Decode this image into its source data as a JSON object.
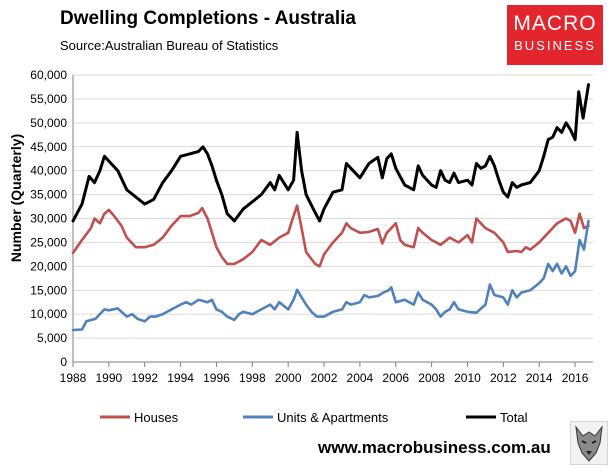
{
  "chart_data": {
    "type": "line",
    "title": "Dwelling Completions - Australia",
    "subtitle": "Source:Australian Bureau of Statistics",
    "xlabel": "",
    "ylabel": "Number (Quarterly)",
    "xlim": [
      1988,
      2017
    ],
    "ylim": [
      0,
      60000
    ],
    "grid": true,
    "legend_position": "bottom",
    "x_ticks": [
      "1988",
      "1990",
      "1992",
      "1994",
      "1996",
      "1998",
      "2000",
      "2002",
      "2004",
      "2006",
      "2008",
      "2010",
      "2012",
      "2014",
      "2016"
    ],
    "y_ticks": [
      "0",
      "5,000",
      "10,000",
      "15,000",
      "20,000",
      "25,000",
      "30,000",
      "35,000",
      "40,000",
      "45,000",
      "50,000",
      "55,000",
      "60,000"
    ],
    "series": [
      {
        "name": "Houses",
        "color": "#c0504d",
        "points": [
          [
            1988,
            22800
          ],
          [
            1988.5,
            25500
          ],
          [
            1989,
            28000
          ],
          [
            1989.2,
            30000
          ],
          [
            1989.5,
            29000
          ],
          [
            1989.75,
            31000
          ],
          [
            1990,
            31800
          ],
          [
            1990.3,
            30500
          ],
          [
            1990.7,
            28500
          ],
          [
            1991,
            26000
          ],
          [
            1991.5,
            24000
          ],
          [
            1992,
            24000
          ],
          [
            1992.5,
            24500
          ],
          [
            1993,
            26000
          ],
          [
            1993.5,
            28500
          ],
          [
            1994,
            30500
          ],
          [
            1994.5,
            30500
          ],
          [
            1995,
            31200
          ],
          [
            1995.2,
            32200
          ],
          [
            1995.5,
            30000
          ],
          [
            1995.75,
            27000
          ],
          [
            1996,
            24000
          ],
          [
            1996.3,
            22000
          ],
          [
            1996.6,
            20500
          ],
          [
            1997,
            20500
          ],
          [
            1997.5,
            21500
          ],
          [
            1998,
            23000
          ],
          [
            1998.5,
            25500
          ],
          [
            1999,
            24500
          ],
          [
            1999.5,
            26000
          ],
          [
            2000,
            27000
          ],
          [
            2000.25,
            30000
          ],
          [
            2000.5,
            32700
          ],
          [
            2000.75,
            28000
          ],
          [
            2001,
            23000
          ],
          [
            2001.5,
            20500
          ],
          [
            2001.75,
            20000
          ],
          [
            2002,
            22500
          ],
          [
            2002.5,
            25000
          ],
          [
            2003,
            27000
          ],
          [
            2003.25,
            29000
          ],
          [
            2003.5,
            28000
          ],
          [
            2004,
            27000
          ],
          [
            2004.5,
            27200
          ],
          [
            2005,
            27800
          ],
          [
            2005.25,
            24800
          ],
          [
            2005.5,
            27000
          ],
          [
            2006,
            29000
          ],
          [
            2006.25,
            25500
          ],
          [
            2006.5,
            24500
          ],
          [
            2007,
            24000
          ],
          [
            2007.25,
            28000
          ],
          [
            2007.5,
            27000
          ],
          [
            2008,
            25500
          ],
          [
            2008.5,
            24500
          ],
          [
            2009,
            26000
          ],
          [
            2009.5,
            25000
          ],
          [
            2010,
            26500
          ],
          [
            2010.25,
            25000
          ],
          [
            2010.5,
            30000
          ],
          [
            2011,
            28000
          ],
          [
            2011.5,
            27000
          ],
          [
            2012,
            25000
          ],
          [
            2012.25,
            23000
          ],
          [
            2012.75,
            23200
          ],
          [
            2013,
            23000
          ],
          [
            2013.25,
            24000
          ],
          [
            2013.5,
            23500
          ],
          [
            2014,
            25000
          ],
          [
            2014.5,
            27000
          ],
          [
            2015,
            29000
          ],
          [
            2015.5,
            30000
          ],
          [
            2015.75,
            29500
          ],
          [
            2016,
            27000
          ],
          [
            2016.25,
            31000
          ],
          [
            2016.5,
            28000
          ],
          [
            2016.75,
            28500
          ]
        ]
      },
      {
        "name": "Units & Apartments",
        "color": "#4f81bd",
        "points": [
          [
            1988,
            6700
          ],
          [
            1988.5,
            6800
          ],
          [
            1988.75,
            8500
          ],
          [
            1989.25,
            9000
          ],
          [
            1989.75,
            11000
          ],
          [
            1990,
            10800
          ],
          [
            1990.5,
            11200
          ],
          [
            1991,
            9500
          ],
          [
            1991.3,
            10000
          ],
          [
            1991.6,
            9000
          ],
          [
            1992,
            8500
          ],
          [
            1992.3,
            9500
          ],
          [
            1992.6,
            9500
          ],
          [
            1993,
            10000
          ],
          [
            1993.5,
            11000
          ],
          [
            1994,
            12000
          ],
          [
            1994.3,
            12500
          ],
          [
            1994.6,
            12000
          ],
          [
            1995,
            13000
          ],
          [
            1995.5,
            12500
          ],
          [
            1995.75,
            13000
          ],
          [
            1996,
            11000
          ],
          [
            1996.3,
            10500
          ],
          [
            1996.6,
            9500
          ],
          [
            1997,
            8800
          ],
          [
            1997.25,
            10000
          ],
          [
            1997.5,
            10500
          ],
          [
            1998,
            10000
          ],
          [
            1998.5,
            11000
          ],
          [
            1999,
            12000
          ],
          [
            1999.25,
            11000
          ],
          [
            1999.5,
            12500
          ],
          [
            2000,
            11000
          ],
          [
            2000.3,
            13000
          ],
          [
            2000.5,
            15100
          ],
          [
            2000.75,
            13500
          ],
          [
            2001,
            12000
          ],
          [
            2001.3,
            10500
          ],
          [
            2001.6,
            9500
          ],
          [
            2002,
            9500
          ],
          [
            2002.5,
            10500
          ],
          [
            2003,
            11000
          ],
          [
            2003.25,
            12500
          ],
          [
            2003.5,
            12000
          ],
          [
            2004,
            12500
          ],
          [
            2004.25,
            14000
          ],
          [
            2004.5,
            13500
          ],
          [
            2005,
            13800
          ],
          [
            2005.3,
            14500
          ],
          [
            2005.6,
            15000
          ],
          [
            2005.75,
            15600
          ],
          [
            2006,
            12500
          ],
          [
            2006.5,
            13000
          ],
          [
            2007,
            12000
          ],
          [
            2007.25,
            14500
          ],
          [
            2007.5,
            13000
          ],
          [
            2008,
            12000
          ],
          [
            2008.25,
            11000
          ],
          [
            2008.5,
            9500
          ],
          [
            2008.75,
            10500
          ],
          [
            2009,
            11000
          ],
          [
            2009.25,
            12500
          ],
          [
            2009.5,
            11000
          ],
          [
            2010,
            10500
          ],
          [
            2010.5,
            10300
          ],
          [
            2011,
            12000
          ],
          [
            2011.25,
            16200
          ],
          [
            2011.5,
            14000
          ],
          [
            2012,
            13500
          ],
          [
            2012.25,
            12000
          ],
          [
            2012.5,
            15000
          ],
          [
            2012.75,
            13500
          ],
          [
            2013,
            14500
          ],
          [
            2013.5,
            15000
          ],
          [
            2014,
            16500
          ],
          [
            2014.25,
            17500
          ],
          [
            2014.5,
            20500
          ],
          [
            2014.75,
            19000
          ],
          [
            2015,
            20500
          ],
          [
            2015.25,
            18500
          ],
          [
            2015.5,
            20000
          ],
          [
            2015.75,
            18000
          ],
          [
            2016,
            19000
          ],
          [
            2016.25,
            25500
          ],
          [
            2016.5,
            23500
          ],
          [
            2016.75,
            29500
          ]
        ]
      },
      {
        "name": "Total",
        "color": "#000000",
        "points": [
          [
            1988,
            29500
          ],
          [
            1988.5,
            33000
          ],
          [
            1988.9,
            38800
          ],
          [
            1989.2,
            37500
          ],
          [
            1989.5,
            40000
          ],
          [
            1989.75,
            43000
          ],
          [
            1990,
            42000
          ],
          [
            1990.5,
            40000
          ],
          [
            1991,
            36000
          ],
          [
            1991.5,
            34500
          ],
          [
            1992,
            33000
          ],
          [
            1992.5,
            34000
          ],
          [
            1993,
            37500
          ],
          [
            1993.5,
            40000
          ],
          [
            1994,
            43000
          ],
          [
            1994.5,
            43500
          ],
          [
            1995,
            44000
          ],
          [
            1995.25,
            45000
          ],
          [
            1995.5,
            43500
          ],
          [
            1995.75,
            41000
          ],
          [
            1996,
            38000
          ],
          [
            1996.3,
            35000
          ],
          [
            1996.6,
            31000
          ],
          [
            1997,
            29500
          ],
          [
            1997.5,
            32000
          ],
          [
            1998,
            33500
          ],
          [
            1998.5,
            35000
          ],
          [
            1999,
            37500
          ],
          [
            1999.25,
            36000
          ],
          [
            1999.5,
            39000
          ],
          [
            2000,
            36000
          ],
          [
            2000.3,
            38000
          ],
          [
            2000.5,
            48000
          ],
          [
            2000.75,
            40000
          ],
          [
            2001,
            35000
          ],
          [
            2001.4,
            32000
          ],
          [
            2001.75,
            29500
          ],
          [
            2002,
            32000
          ],
          [
            2002.5,
            35500
          ],
          [
            2003,
            36000
          ],
          [
            2003.25,
            41500
          ],
          [
            2003.5,
            40500
          ],
          [
            2004,
            38500
          ],
          [
            2004.25,
            40000
          ],
          [
            2004.5,
            41500
          ],
          [
            2005,
            42800
          ],
          [
            2005.25,
            38500
          ],
          [
            2005.5,
            42500
          ],
          [
            2005.75,
            43500
          ],
          [
            2006,
            40500
          ],
          [
            2006.5,
            37000
          ],
          [
            2007,
            36000
          ],
          [
            2007.25,
            41000
          ],
          [
            2007.5,
            39000
          ],
          [
            2008,
            37000
          ],
          [
            2008.25,
            36500
          ],
          [
            2008.5,
            40000
          ],
          [
            2008.75,
            38000
          ],
          [
            2009,
            37500
          ],
          [
            2009.25,
            39500
          ],
          [
            2009.5,
            37500
          ],
          [
            2010,
            38000
          ],
          [
            2010.25,
            37000
          ],
          [
            2010.5,
            41500
          ],
          [
            2010.75,
            40500
          ],
          [
            2011,
            41000
          ],
          [
            2011.25,
            43000
          ],
          [
            2011.5,
            41000
          ],
          [
            2011.75,
            38000
          ],
          [
            2012,
            35500
          ],
          [
            2012.25,
            34500
          ],
          [
            2012.5,
            37500
          ],
          [
            2012.75,
            36500
          ],
          [
            2013,
            37000
          ],
          [
            2013.5,
            37500
          ],
          [
            2014,
            40000
          ],
          [
            2014.25,
            43000
          ],
          [
            2014.5,
            46500
          ],
          [
            2014.75,
            47000
          ],
          [
            2015,
            49000
          ],
          [
            2015.25,
            48000
          ],
          [
            2015.5,
            50000
          ],
          [
            2015.75,
            48500
          ],
          [
            2016,
            46500
          ],
          [
            2016.2,
            56500
          ],
          [
            2016.45,
            51000
          ],
          [
            2016.75,
            58000
          ]
        ]
      }
    ]
  },
  "branding": {
    "logo_line1": "MACRO",
    "logo_line2": "BUSINESS",
    "website": "www.macrobusiness.com.au"
  },
  "colors": {
    "logo_bg": "#e3262e",
    "grid": "#d9d9d9",
    "axis": "#808080"
  }
}
